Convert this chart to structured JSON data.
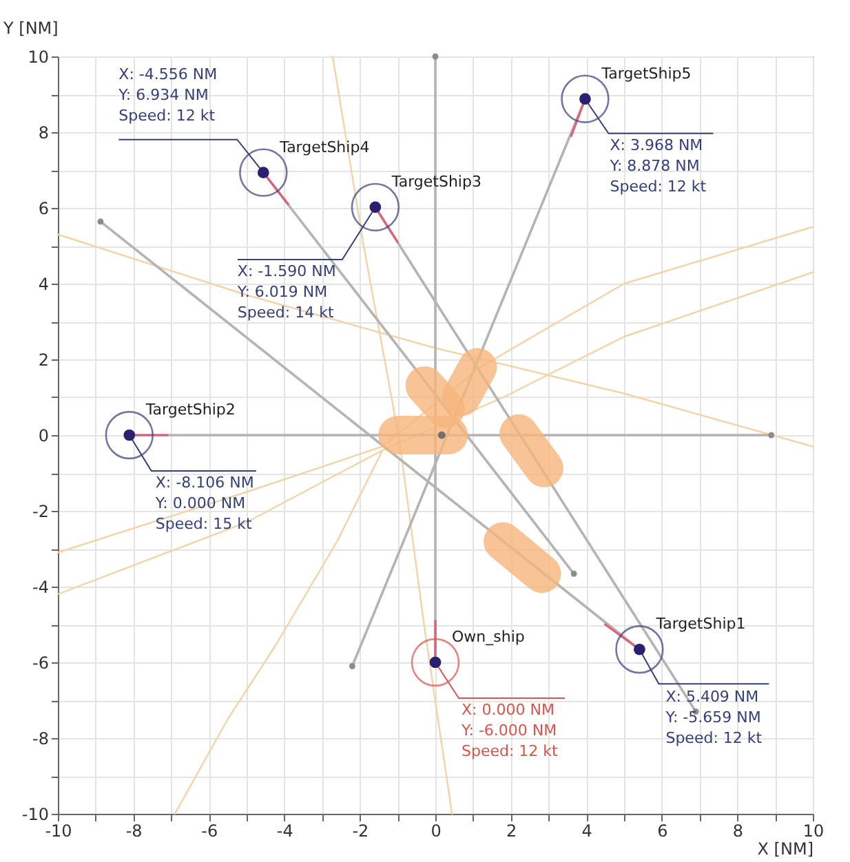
{
  "chart_data": {
    "type": "scatter",
    "xlabel": "X [NM]",
    "ylabel": "Y [NM]",
    "xlim": [
      -10,
      10
    ],
    "ylim": [
      -10,
      10
    ],
    "xticks": [
      -10,
      {
        "value": -9,
        "label": null
      },
      -8,
      {
        "value": -7,
        "label": null
      },
      -6,
      {
        "value": -5,
        "label": null
      },
      -4,
      {
        "value": -3,
        "label": null
      },
      -2,
      {
        "value": -1,
        "label": null
      },
      0,
      {
        "value": 1,
        "label": null
      },
      2,
      {
        "value": 3,
        "label": null
      },
      4,
      {
        "value": 5,
        "label": null
      },
      6,
      {
        "value": 7,
        "label": null
      },
      8,
      {
        "value": 9,
        "label": null
      },
      10
    ],
    "yticks": [
      -10,
      {
        "value": -9,
        "label": null
      },
      -8,
      {
        "value": -7,
        "label": null
      },
      -6,
      {
        "value": -5,
        "label": null
      },
      -4,
      {
        "value": -3,
        "label": null
      },
      -2,
      {
        "value": -1,
        "label": null
      },
      0,
      {
        "value": 1,
        "label": null
      },
      2,
      {
        "value": 3,
        "label": null
      },
      4,
      {
        "value": 5,
        "label": null
      },
      6,
      {
        "value": 7,
        "label": null
      },
      8,
      {
        "value": 9,
        "label": null
      },
      10
    ],
    "grid": true,
    "series": [
      {
        "type": "line",
        "color": "#f3d3a8",
        "x": [
          -2.72,
          -1.9,
          -0.95,
          -0.3,
          0.44
        ],
        "values": [
          10,
          5,
          -0.15,
          -5,
          -10
        ]
      },
      {
        "type": "line",
        "color": "#f3d3a8",
        "x": [
          -10,
          -5,
          0,
          5,
          10
        ],
        "values": [
          5.3,
          3.7,
          2.3,
          1.1,
          -0.3
        ]
      },
      {
        "type": "line",
        "color": "#f3d3a8",
        "x": [
          -10,
          -5,
          -1.4,
          1.2,
          5,
          10
        ],
        "values": [
          -3.1,
          -1.5,
          -0.3,
          1.8,
          4.0,
          5.5
        ]
      },
      {
        "type": "line",
        "color": "#f3d3a8",
        "x": [
          -10,
          -5,
          -1.4,
          1.8,
          5,
          10
        ],
        "values": [
          -4.2,
          -2.3,
          -0.4,
          1.0,
          2.6,
          4.3
        ]
      },
      {
        "type": "line",
        "color": "#f3d3a8",
        "x": [
          -6.9,
          -5.5,
          -4.2,
          -2.6,
          -1.4
        ],
        "values": [
          -10,
          -7.5,
          -5.5,
          -2.8,
          -0.4
        ]
      },
      {
        "type": "line",
        "color": "#b4b4b4",
        "marker": "circle",
        "x": [
          0,
          0
        ],
        "values": [
          -6,
          10
        ]
      },
      {
        "type": "line",
        "color": "#b4b4b4",
        "marker": "circle",
        "x": [
          -8.106,
          8.9
        ],
        "values": [
          0,
          0
        ]
      },
      {
        "type": "line",
        "color": "#b4b4b4",
        "marker": "circle",
        "x": [
          5.409,
          -8.87
        ],
        "values": [
          -5.659,
          5.64
        ]
      },
      {
        "type": "line",
        "color": "#b4b4b4",
        "marker": "circle",
        "x": [
          -1.59,
          6.9
        ],
        "values": [
          6.019,
          -7.3
        ]
      },
      {
        "type": "line",
        "color": "#b4b4b4",
        "marker": "circle",
        "x": [
          -4.556,
          3.67
        ],
        "values": [
          6.934,
          -3.66
        ]
      },
      {
        "type": "line",
        "color": "#b4b4b4",
        "marker": "circle",
        "x": [
          3.968,
          -2.2
        ],
        "values": [
          8.878,
          -6.1
        ]
      },
      {
        "type": "line",
        "color": "#f6b57c",
        "x": [
          -1.0,
          0.35
        ],
        "values": [
          0,
          0
        ]
      },
      {
        "type": "line",
        "color": "#f6b57c",
        "x": [
          -0.28,
          0.27
        ],
        "values": [
          1.31,
          0.7
        ]
      },
      {
        "type": "line",
        "color": "#f6b57c",
        "x": [
          1.12,
          0.69
        ],
        "values": [
          1.79,
          1.01
        ]
      },
      {
        "type": "line",
        "color": "#f6b57c",
        "x": [
          2.21,
          2.88
        ],
        "values": [
          0.04,
          -0.87
        ]
      },
      {
        "type": "line",
        "color": "#f6b57c",
        "x": [
          1.79,
          2.82
        ],
        "values": [
          -2.81,
          -3.66
        ]
      },
      {
        "color": "#707070",
        "x": [
          0.17
        ],
        "values": [
          0
        ]
      },
      {
        "type": "line",
        "color": "#e0607a",
        "x": [
          0,
          0
        ],
        "values": [
          -6,
          -4.9
        ]
      },
      {
        "type": "line",
        "color": "#e0607a",
        "x": [
          -8.106,
          -7.1
        ],
        "values": [
          0,
          0
        ]
      },
      {
        "type": "line",
        "color": "#e0607a",
        "x": [
          5.409,
          4.5
        ],
        "values": [
          -5.659,
          -5.0
        ]
      },
      {
        "type": "line",
        "color": "#e0607a",
        "x": [
          -1.59,
          -1.0
        ],
        "values": [
          6.019,
          5.1
        ]
      },
      {
        "type": "line",
        "color": "#e0607a",
        "x": [
          -4.556,
          -3.9
        ],
        "values": [
          6.934,
          6.1
        ]
      },
      {
        "type": "line",
        "color": "#e0607a",
        "x": [
          3.968,
          3.6
        ],
        "values": [
          8.878,
          7.9
        ]
      },
      {
        "name": "TargetShip4",
        "color": "#34407a",
        "x": [
          -4.556
        ],
        "values": [
          6.934
        ]
      },
      {
        "name": "TargetShip3",
        "color": "#34407a",
        "x": [
          -1.59
        ],
        "values": [
          6.019
        ]
      },
      {
        "name": "TargetShip5",
        "color": "#34407a",
        "x": [
          3.968
        ],
        "values": [
          8.878
        ]
      },
      {
        "name": "TargetShip2",
        "color": "#34407a",
        "x": [
          -8.106
        ],
        "values": [
          0
        ]
      },
      {
        "name": "Own_ship",
        "color": "#d9534f",
        "x": [
          0
        ],
        "values": [
          -6
        ]
      },
      {
        "name": "TargetShip1",
        "color": "#34407a",
        "x": [
          5.409
        ],
        "values": [
          -5.659
        ]
      }
    ],
    "annotations": [
      {
        "text": "X: -4.556 NM\nY: 6.934 NM\nSpeed: 12 kt",
        "x": -4.556,
        "y": 6.934
      },
      {
        "text": "X: -1.590 NM\nY: 6.019 NM\nSpeed: 14 kt",
        "x": -1.59,
        "y": 6.019
      },
      {
        "text": "X: 3.968 NM\nY: 8.878 NM\nSpeed: 12 kt",
        "x": 3.968,
        "y": 8.878
      },
      {
        "text": "X: -8.106 NM\nY: 0.000 NM\nSpeed: 15 kt",
        "x": -8.106,
        "y": 0
      },
      {
        "text": "X: 0.000 NM\nY: -6.000 NM\nSpeed: 12 kt",
        "x": 0,
        "y": -6
      },
      {
        "text": "X: 5.409 NM\nY: -5.659 NM\nSpeed: 12 kt",
        "x": 5.409,
        "y": -5.659
      }
    ]
  }
}
